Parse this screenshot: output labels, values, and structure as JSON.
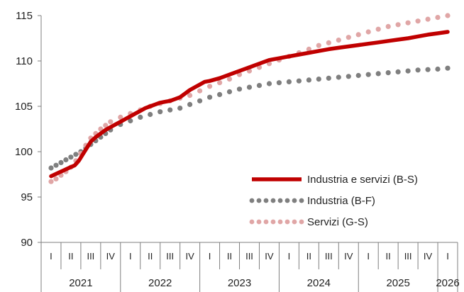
{
  "chart_data": {
    "type": "line",
    "title": "",
    "xlabel": "",
    "ylabel": "",
    "ylim": [
      90,
      115
    ],
    "y_ticks": [
      90,
      95,
      100,
      105,
      110,
      115
    ],
    "grid": false,
    "legend_position": "right-center",
    "x_quarter_labels": [
      "I",
      "II",
      "III",
      "IV",
      "I",
      "II",
      "III",
      "IV",
      "I",
      "II",
      "III",
      "IV",
      "I",
      "II",
      "III",
      "IV",
      "I",
      "II",
      "III",
      "IV",
      "I"
    ],
    "x_years": [
      {
        "label": "2021",
        "start": 0,
        "count": 4
      },
      {
        "label": "2022",
        "start": 4,
        "count": 4
      },
      {
        "label": "2023",
        "start": 8,
        "count": 4
      },
      {
        "label": "2024",
        "start": 12,
        "count": 4
      },
      {
        "label": "2025",
        "start": 16,
        "count": 4
      },
      {
        "label": "2026",
        "start": 20,
        "count": 1
      }
    ],
    "series": [
      {
        "name": "Industria e servizi (B-S)",
        "color": "#c00000",
        "style": "solid",
        "x": [
          0,
          0.2,
          0.4,
          0.6,
          0.8,
          1,
          1.2,
          1.4,
          1.6,
          1.8,
          2,
          2.25,
          2.5,
          2.75,
          3,
          3.25,
          3.5,
          3.75,
          4,
          4.25,
          4.5,
          4.75,
          5,
          5.25,
          5.5,
          5.75,
          6,
          6.25,
          6.5,
          6.75,
          7,
          7.25,
          7.5,
          7.75,
          8,
          8.5,
          9,
          9.5,
          10,
          10.5,
          11,
          11.5,
          12,
          12.5,
          13,
          13.5,
          14,
          14.5,
          15,
          15.5,
          16,
          16.5,
          17,
          17.5,
          18,
          18.5,
          19,
          19.5,
          20
        ],
        "values": [
          97.3,
          97.5,
          97.7,
          97.9,
          98.1,
          98.3,
          98.5,
          99.0,
          99.7,
          100.4,
          101.1,
          101.6,
          102.0,
          102.4,
          102.7,
          103.0,
          103.3,
          103.6,
          103.9,
          104.2,
          104.5,
          104.8,
          105.0,
          105.2,
          105.4,
          105.5,
          105.6,
          105.8,
          106.0,
          106.4,
          106.8,
          107.1,
          107.4,
          107.7,
          107.8,
          108.1,
          108.5,
          108.9,
          109.3,
          109.7,
          110.1,
          110.3,
          110.5,
          110.7,
          110.9,
          111.1,
          111.3,
          111.45,
          111.6,
          111.75,
          111.9,
          112.05,
          112.2,
          112.35,
          112.5,
          112.7,
          112.9,
          113.05,
          113.2
        ]
      },
      {
        "name": "Industria (B-F)",
        "color": "#7f7f7f",
        "style": "dotted",
        "x": [
          0,
          0.25,
          0.5,
          0.75,
          1,
          1.25,
          1.5,
          1.75,
          2,
          2.25,
          2.5,
          2.75,
          3,
          3.5,
          4,
          4.5,
          5,
          5.5,
          6,
          6.5,
          7,
          7.5,
          8,
          8.5,
          9,
          9.5,
          10,
          10.5,
          11,
          11.5,
          12,
          12.5,
          13,
          13.5,
          14,
          14.5,
          15,
          15.5,
          16,
          16.5,
          17,
          17.5,
          18,
          18.5,
          19,
          19.5,
          20
        ],
        "values": [
          98.2,
          98.5,
          98.8,
          99.1,
          99.4,
          99.7,
          100.0,
          100.4,
          100.8,
          101.2,
          101.6,
          102.0,
          102.4,
          103.0,
          103.4,
          103.8,
          104.1,
          104.4,
          104.6,
          104.8,
          105.2,
          105.6,
          106.0,
          106.3,
          106.6,
          106.9,
          107.1,
          107.3,
          107.5,
          107.6,
          107.7,
          107.8,
          107.9,
          108.0,
          108.1,
          108.2,
          108.3,
          108.4,
          108.5,
          108.6,
          108.7,
          108.8,
          108.9,
          109.0,
          109.05,
          109.1,
          109.2
        ]
      },
      {
        "name": "Servizi (G-S)",
        "color": "#e0a6a6",
        "style": "dotted",
        "x": [
          0,
          0.25,
          0.5,
          0.75,
          1,
          1.25,
          1.5,
          1.75,
          2,
          2.25,
          2.5,
          2.75,
          3,
          3.5,
          4,
          4.5,
          5,
          5.5,
          6,
          6.5,
          7,
          7.5,
          8,
          8.5,
          9,
          9.5,
          10,
          10.5,
          11,
          11.5,
          12,
          12.5,
          13,
          13.5,
          14,
          14.5,
          15,
          15.5,
          16,
          16.5,
          17,
          17.5,
          18,
          18.5,
          19,
          19.5,
          20
        ],
        "values": [
          96.7,
          97.0,
          97.4,
          97.8,
          98.3,
          99.0,
          99.8,
          100.7,
          101.5,
          102.0,
          102.5,
          102.9,
          103.3,
          103.8,
          104.2,
          104.6,
          105.0,
          105.3,
          105.6,
          105.9,
          106.2,
          106.7,
          107.2,
          107.6,
          108.0,
          108.5,
          108.9,
          109.3,
          109.7,
          110.1,
          110.5,
          110.9,
          111.3,
          111.7,
          112.0,
          112.3,
          112.6,
          112.9,
          113.2,
          113.5,
          113.8,
          114.0,
          114.2,
          114.4,
          114.6,
          114.8,
          115.0
        ]
      }
    ]
  }
}
